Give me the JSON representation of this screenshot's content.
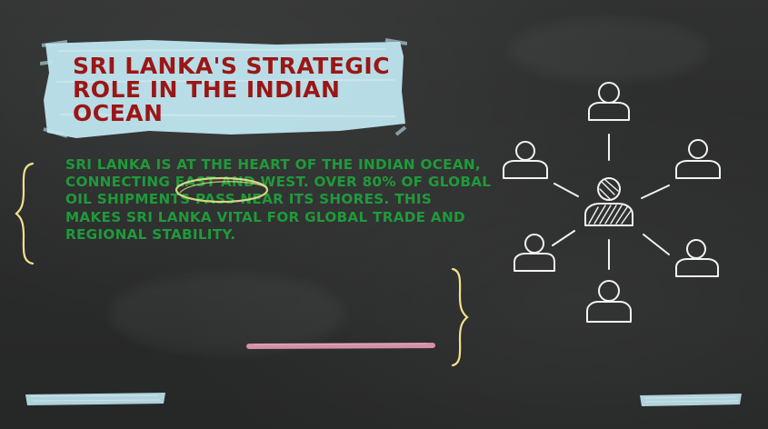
{
  "slide": {
    "title": "SRI LANKA'S STRATEGIC ROLE IN THE INDIAN OCEAN",
    "body": "SRI LANKA IS AT THE HEART OF THE INDIAN OCEAN, CONNECTING EAST AND WEST. OVER 80% OF GLOBAL OIL SHIPMENTS PASS NEAR ITS SHORES. THIS MAKES SRI LANKA VITAL FOR GLOBAL TRADE AND REGIONAL STABILITY."
  },
  "colors": {
    "board": "#2b2c2c",
    "title_text": "#9b1616",
    "title_highlight": "#bfe6ef",
    "body_text": "#1f9a3a",
    "brace": "#f3e08a",
    "pink_chalk": "#e79ab8",
    "blue_chalk": "#bfe6ef",
    "chalk_white": "#f2f2f2"
  },
  "icons": {
    "network": "people-network-icon",
    "left_brace": "curly-brace-icon",
    "right_brace": "curly-brace-icon"
  }
}
